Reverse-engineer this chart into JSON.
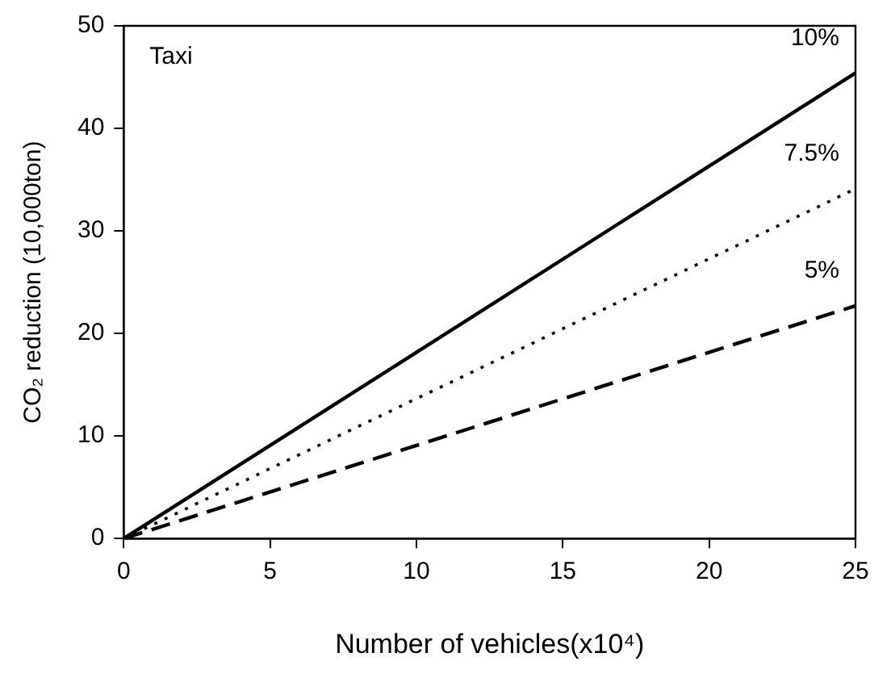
{
  "chart_data": {
    "type": "line",
    "xlabel": "Number of vehicles(x10⁴)",
    "ylabel": "CO₂ reduction (10,000ton)",
    "annotations": [
      "Taxi"
    ],
    "x": [
      0,
      25
    ],
    "xlim": [
      0,
      25
    ],
    "xticks": [
      0,
      5,
      10,
      15,
      20,
      25
    ],
    "ylim": [
      0,
      50
    ],
    "yticks": [
      0,
      10,
      20,
      30,
      40,
      50
    ],
    "legend": false,
    "marker": "none",
    "series": [
      {
        "name": "10%",
        "color": "#000000",
        "line_style": "solid",
        "values": [
          0,
          45.4
        ]
      },
      {
        "name": "7.5%",
        "color": "#000000",
        "line_style": "dotted",
        "values": [
          0,
          34.1
        ]
      },
      {
        "name": "5%",
        "color": "#000000",
        "line_style": "dashed",
        "values": [
          0,
          22.7
        ]
      }
    ]
  }
}
